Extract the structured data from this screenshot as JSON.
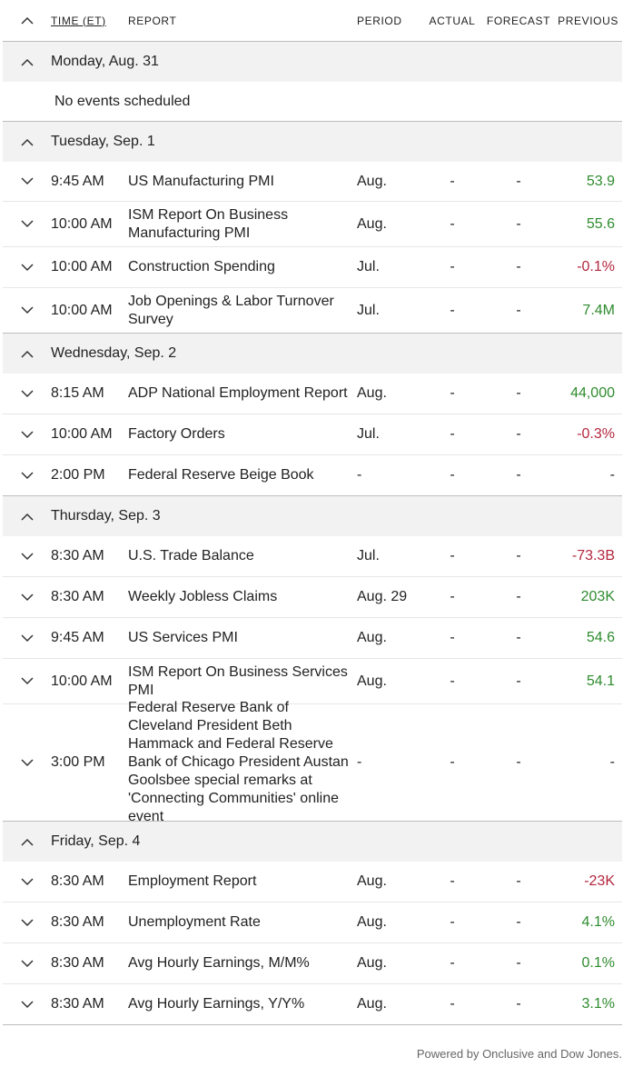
{
  "header": {
    "time": "TIME (ET)",
    "report": "REPORT",
    "period": "PERIOD",
    "actual": "ACTUAL",
    "forecast": "FORECAST",
    "previous": "PREVIOUS"
  },
  "colors": {
    "positive": "#2e8b2e",
    "negative": "#b3263e",
    "day_bg": "#f2f2f2"
  },
  "days": [
    {
      "label": "Monday, Aug. 31",
      "empty": "No events scheduled",
      "events": []
    },
    {
      "label": "Tuesday, Sep. 1",
      "events": [
        {
          "time": "9:45 AM",
          "report": "US Manufacturing PMI",
          "period": "Aug.",
          "actual": "-",
          "forecast": "-",
          "previous": "53.9",
          "sign": "pos"
        },
        {
          "time": "10:00 AM",
          "report": "ISM Report On Business Manufacturing PMI",
          "period": "Aug.",
          "actual": "-",
          "forecast": "-",
          "previous": "55.6",
          "sign": "pos"
        },
        {
          "time": "10:00 AM",
          "report": "Construction Spending",
          "period": "Jul.",
          "actual": "-",
          "forecast": "-",
          "previous": "-0.1%",
          "sign": "neg"
        },
        {
          "time": "10:00 AM",
          "report": "Job Openings & Labor Turnover Survey",
          "period": "Jul.",
          "actual": "-",
          "forecast": "-",
          "previous": "7.4M",
          "sign": "pos"
        }
      ]
    },
    {
      "label": "Wednesday, Sep. 2",
      "events": [
        {
          "time": "8:15 AM",
          "report": "ADP National Employment Report",
          "period": "Aug.",
          "actual": "-",
          "forecast": "-",
          "previous": "44,000",
          "sign": "pos"
        },
        {
          "time": "10:00 AM",
          "report": "Factory Orders",
          "period": "Jul.",
          "actual": "-",
          "forecast": "-",
          "previous": "-0.3%",
          "sign": "neg"
        },
        {
          "time": "2:00 PM",
          "report": "Federal Reserve Beige Book",
          "period": "-",
          "actual": "-",
          "forecast": "-",
          "previous": "-",
          "sign": "neutral"
        }
      ]
    },
    {
      "label": "Thursday, Sep. 3",
      "events": [
        {
          "time": "8:30 AM",
          "report": "U.S. Trade Balance",
          "period": "Jul.",
          "actual": "-",
          "forecast": "-",
          "previous": "-73.3B",
          "sign": "neg"
        },
        {
          "time": "8:30 AM",
          "report": "Weekly Jobless Claims",
          "period": "Aug. 29",
          "actual": "-",
          "forecast": "-",
          "previous": "203K",
          "sign": "pos"
        },
        {
          "time": "9:45 AM",
          "report": "US Services PMI",
          "period": "Aug.",
          "actual": "-",
          "forecast": "-",
          "previous": "54.6",
          "sign": "pos"
        },
        {
          "time": "10:00 AM",
          "report": "ISM Report On Business Services PMI",
          "period": "Aug.",
          "actual": "-",
          "forecast": "-",
          "previous": "54.1",
          "sign": "pos"
        },
        {
          "time": "3:00 PM",
          "report": "Federal Reserve Bank of Cleveland President Beth Hammack and Federal Reserve Bank of Chicago President Austan Goolsbee special remarks at 'Connecting Communities' online event",
          "period": "-",
          "actual": "-",
          "forecast": "-",
          "previous": "-",
          "sign": "neutral"
        }
      ]
    },
    {
      "label": "Friday, Sep. 4",
      "events": [
        {
          "time": "8:30 AM",
          "report": "Employment Report",
          "period": "Aug.",
          "actual": "-",
          "forecast": "-",
          "previous": "-23K",
          "sign": "neg"
        },
        {
          "time": "8:30 AM",
          "report": "Unemployment Rate",
          "period": "Aug.",
          "actual": "-",
          "forecast": "-",
          "previous": "4.1%",
          "sign": "pos"
        },
        {
          "time": "8:30 AM",
          "report": "Avg Hourly Earnings, M/M%",
          "period": "Aug.",
          "actual": "-",
          "forecast": "-",
          "previous": "0.1%",
          "sign": "pos"
        },
        {
          "time": "8:30 AM",
          "report": "Avg Hourly Earnings, Y/Y%",
          "period": "Aug.",
          "actual": "-",
          "forecast": "-",
          "previous": "3.1%",
          "sign": "pos"
        }
      ]
    }
  ],
  "footer": "Powered by Onclusive and Dow Jones."
}
